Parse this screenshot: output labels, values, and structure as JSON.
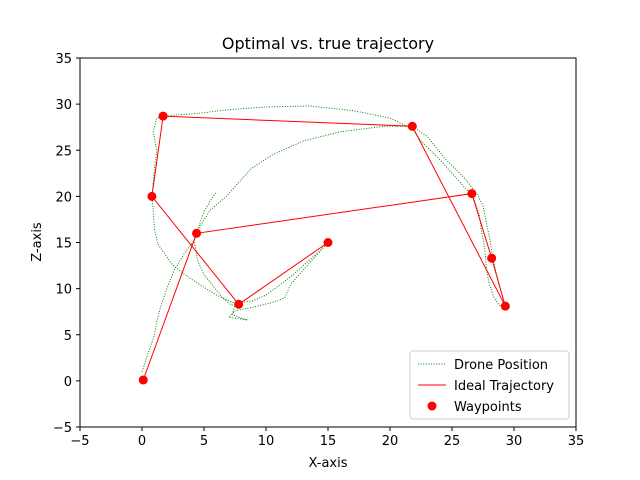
{
  "chart_data": {
    "type": "line",
    "title": "Optimal vs. true trajectory",
    "xlabel": "X-axis",
    "ylabel": "Z-axis",
    "xlim": [
      -5,
      35
    ],
    "ylim": [
      -5,
      35
    ],
    "xticks": [
      -5,
      0,
      5,
      10,
      15,
      20,
      25,
      30,
      35
    ],
    "yticks": [
      -5,
      0,
      5,
      10,
      15,
      20,
      25,
      30,
      35
    ],
    "grid": false,
    "legend_position": "lower-right",
    "series": [
      {
        "name": "Drone Position",
        "kind": "line",
        "style": "dotted",
        "color": "#008000",
        "points": [
          [
            0.0,
            1.0
          ],
          [
            0.5,
            3.0
          ],
          [
            1.0,
            5.0
          ],
          [
            1.2,
            6.5
          ],
          [
            1.5,
            8.0
          ],
          [
            2.0,
            10.0
          ],
          [
            2.6,
            12.0
          ],
          [
            3.5,
            14.0
          ],
          [
            4.2,
            15.2
          ],
          [
            4.8,
            17.0
          ],
          [
            5.5,
            18.5
          ],
          [
            6.8,
            20.0
          ],
          [
            7.8,
            21.5
          ],
          [
            8.8,
            23.0
          ],
          [
            10.5,
            24.5
          ],
          [
            13.0,
            26.0
          ],
          [
            16.0,
            27.0
          ],
          [
            19.5,
            27.6
          ],
          [
            21.8,
            27.6
          ],
          [
            23.0,
            26.5
          ],
          [
            24.5,
            24.0
          ],
          [
            26.0,
            22.0
          ],
          [
            27.0,
            20.3
          ],
          [
            27.5,
            19.0
          ],
          [
            27.8,
            17.0
          ],
          [
            28.1,
            15.0
          ],
          [
            28.3,
            13.3
          ],
          [
            28.6,
            11.5
          ],
          [
            29.0,
            9.5
          ],
          [
            29.3,
            8.0
          ],
          [
            28.8,
            8.2
          ],
          [
            28.4,
            9.0
          ],
          [
            28.0,
            10.5
          ],
          [
            27.8,
            12.0
          ],
          [
            27.7,
            13.5
          ],
          [
            27.6,
            14.7
          ],
          [
            27.4,
            16.0
          ],
          [
            27.2,
            18.0
          ],
          [
            26.7,
            20.0
          ],
          [
            26.0,
            21.0
          ],
          [
            25.0,
            22.5
          ],
          [
            24.0,
            24.0
          ],
          [
            22.5,
            26.0
          ],
          [
            21.8,
            27.3
          ],
          [
            20.0,
            28.5
          ],
          [
            17.0,
            29.3
          ],
          [
            13.5,
            29.8
          ],
          [
            10.0,
            29.7
          ],
          [
            7.0,
            29.4
          ],
          [
            4.5,
            29.0
          ],
          [
            2.5,
            28.8
          ],
          [
            1.2,
            28.5
          ],
          [
            0.9,
            27.0
          ],
          [
            1.2,
            25.0
          ],
          [
            1.0,
            23.0
          ],
          [
            0.9,
            21.5
          ],
          [
            0.8,
            20.0
          ],
          [
            0.9,
            18.5
          ],
          [
            1.0,
            16.5
          ],
          [
            1.3,
            14.8
          ],
          [
            2.5,
            12.5
          ],
          [
            4.0,
            11.0
          ],
          [
            6.0,
            9.3
          ],
          [
            7.5,
            8.4
          ],
          [
            7.3,
            7.2
          ],
          [
            8.0,
            6.8
          ],
          [
            8.5,
            6.6
          ],
          [
            7.0,
            6.9
          ],
          [
            7.5,
            7.6
          ],
          [
            9.0,
            8.0
          ],
          [
            10.5,
            8.5
          ],
          [
            11.5,
            9.0
          ],
          [
            12.0,
            10.5
          ],
          [
            13.0,
            12.0
          ],
          [
            14.0,
            13.5
          ],
          [
            15.0,
            15.0
          ],
          [
            14.2,
            13.9
          ],
          [
            13.0,
            12.5
          ],
          [
            12.0,
            11.3
          ],
          [
            11.0,
            10.3
          ],
          [
            10.0,
            9.3
          ],
          [
            9.0,
            8.7
          ],
          [
            8.0,
            8.5
          ],
          [
            7.2,
            8.2
          ],
          [
            6.5,
            9.0
          ],
          [
            5.8,
            10.2
          ],
          [
            5.0,
            11.5
          ],
          [
            4.5,
            13.0
          ],
          [
            4.2,
            15.3
          ],
          [
            4.6,
            16.8
          ],
          [
            5.0,
            18.3
          ],
          [
            5.5,
            19.5
          ],
          [
            6.0,
            20.5
          ]
        ]
      },
      {
        "name": "Ideal Trajectory",
        "kind": "line",
        "style": "solid",
        "color": "#ff0000",
        "points": [
          [
            0.1,
            0.1
          ],
          [
            4.4,
            16.0
          ],
          [
            26.6,
            20.3
          ],
          [
            28.2,
            13.3
          ],
          [
            29.3,
            8.1
          ],
          [
            21.8,
            27.6
          ],
          [
            1.7,
            28.7
          ],
          [
            0.8,
            20.0
          ],
          [
            7.8,
            8.3
          ],
          [
            15.0,
            15.0
          ]
        ]
      },
      {
        "name": "Waypoints",
        "kind": "scatter",
        "color": "#ff0000",
        "points": [
          [
            0.1,
            0.1
          ],
          [
            4.4,
            16.0
          ],
          [
            26.6,
            20.3
          ],
          [
            28.2,
            13.3
          ],
          [
            29.3,
            8.1
          ],
          [
            21.8,
            27.6
          ],
          [
            1.7,
            28.7
          ],
          [
            0.8,
            20.0
          ],
          [
            7.8,
            8.3
          ],
          [
            15.0,
            15.0
          ]
        ]
      }
    ]
  }
}
